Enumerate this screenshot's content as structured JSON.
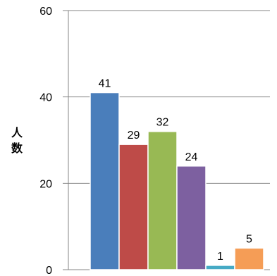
{
  "chart_data": {
    "type": "bar",
    "title": "",
    "xlabel": "",
    "ylabel": "人数",
    "ylim": [
      0,
      60
    ],
    "yticks": [
      0,
      20,
      40,
      60
    ],
    "grid": true,
    "values": [
      41,
      29,
      32,
      24,
      1,
      5
    ],
    "data_labels": [
      "41",
      "29",
      "32",
      "24",
      "1",
      "5"
    ],
    "colors": [
      "#4a7ebb",
      "#be4b48",
      "#98b954",
      "#7d60a0",
      "#46aac5",
      "#f59d56"
    ]
  }
}
